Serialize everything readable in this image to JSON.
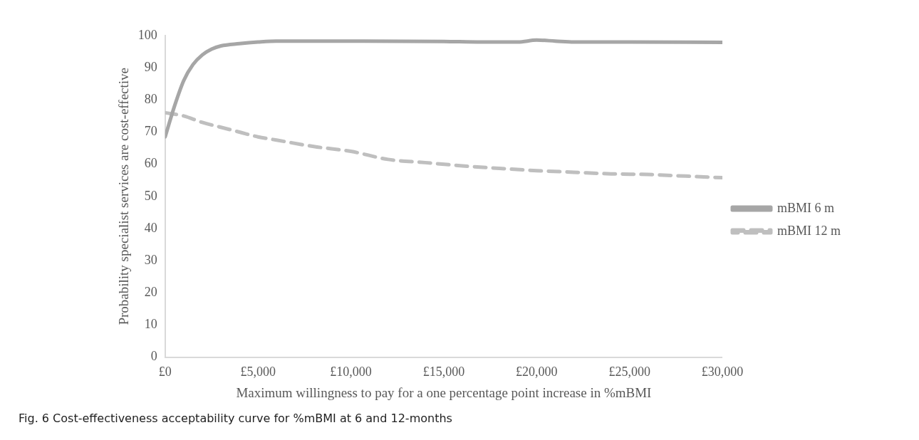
{
  "chart_data": {
    "type": "line",
    "xlabel": "Maximum willingness to pay for a one percentage point increase in %mBMI",
    "ylabel": "Probability specialist services are cost-effective",
    "annotations": [
      "Fig. 6 Cost-effectiveness acceptability curve for %mBMI at 6 and 12-months"
    ],
    "series": [
      {
        "name": "mBMI 6 m",
        "color": "#a6a6a6",
        "line_style": "solid",
        "x": [
          0,
          500,
          1000,
          1500,
          2000,
          2500,
          3000,
          4000,
          5000,
          6000,
          8000,
          10000,
          15000,
          17000,
          19000,
          20000,
          21000,
          22000,
          25000,
          30000
        ],
        "values": [
          68.5,
          78,
          86,
          91,
          94,
          95.8,
          96.8,
          97.5,
          98,
          98.3,
          98.3,
          98.3,
          98.2,
          98,
          98,
          98.6,
          98.3,
          98,
          98,
          97.9
        ]
      },
      {
        "name": "mBMI 12 m",
        "color": "#bfbfbf",
        "line_style": "dashed",
        "x": [
          0,
          1000,
          2000,
          3000,
          4000,
          5000,
          6000,
          8000,
          10000,
          12000,
          14000,
          16000,
          18000,
          20000,
          22000,
          24000,
          26000,
          28000,
          30000
        ],
        "values": [
          76,
          75,
          73,
          71.5,
          70,
          68.5,
          67.5,
          65.5,
          64,
          61.5,
          60.5,
          59.5,
          58.7,
          58,
          57.5,
          57,
          56.8,
          56.3,
          55.8
        ]
      }
    ],
    "xlim": [
      0,
      30000
    ],
    "xticks": [
      {
        "value": 0,
        "label": "£0"
      },
      {
        "value": 5000,
        "label": "£5,000"
      },
      {
        "value": 10000,
        "label": "£10,000"
      },
      {
        "value": 15000,
        "label": "£15,000"
      },
      {
        "value": 20000,
        "label": "£20,000"
      },
      {
        "value": 25000,
        "label": "£25,000"
      },
      {
        "value": 30000,
        "label": "£30,000"
      }
    ],
    "ylim": [
      0,
      100
    ],
    "yticks": [
      0,
      10,
      20,
      30,
      40,
      50,
      60,
      70,
      80,
      90,
      100
    ],
    "grid": false,
    "legend": "right",
    "marker": "none"
  }
}
